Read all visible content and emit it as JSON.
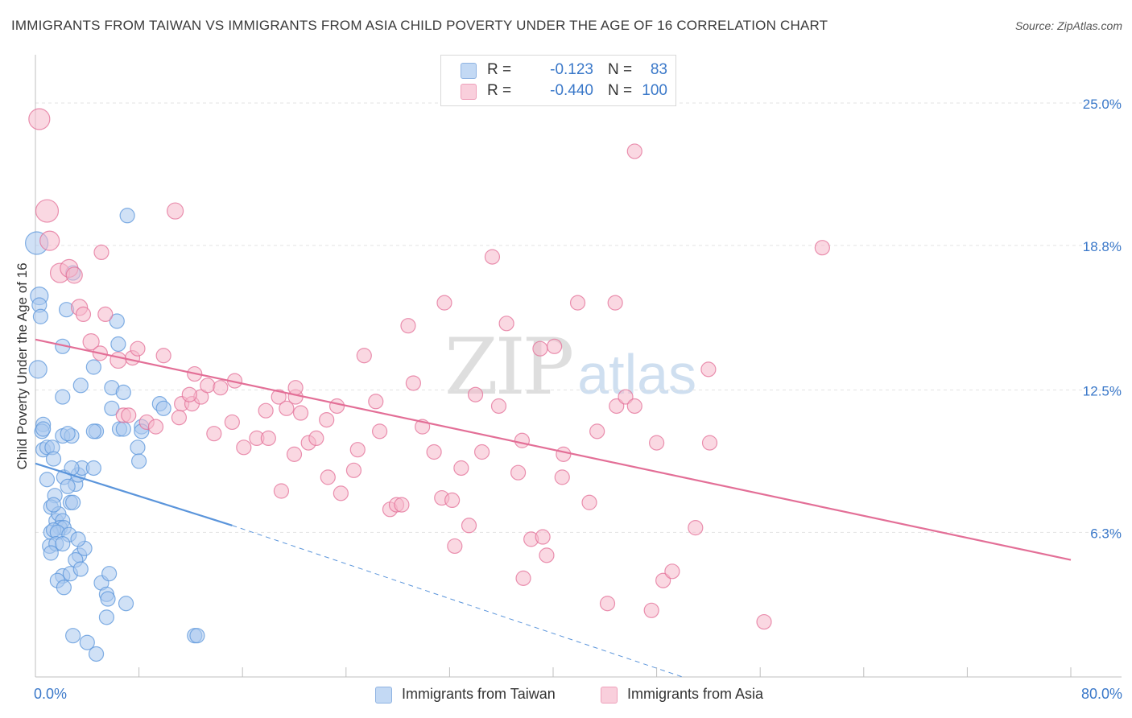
{
  "title": "IMMIGRANTS FROM TAIWAN VS IMMIGRANTS FROM ASIA CHILD POVERTY UNDER THE AGE OF 16 CORRELATION CHART",
  "source": "Source: ZipAtlas.com",
  "watermark": {
    "zip": "ZIP",
    "atlas": "atlas"
  },
  "legend": {
    "rows": [
      {
        "r_label": "R =",
        "r_value": "-0.123",
        "n_label": "N =",
        "n_value": "83",
        "color": "#a9c8ef"
      },
      {
        "r_label": "R =",
        "r_value": "-0.440",
        "n_label": "N =",
        "n_value": "100",
        "color": "#f5b8cb"
      }
    ]
  },
  "bottom_legend": [
    {
      "label": "Immigrants from Taiwan",
      "color": "#a9c8ef"
    },
    {
      "label": "Immigrants from Asia",
      "color": "#f5b8cb"
    }
  ],
  "chart_data": {
    "type": "scatter",
    "title": "IMMIGRANTS FROM TAIWAN VS IMMIGRANTS FROM ASIA CHILD POVERTY UNDER THE AGE OF 16 CORRELATION CHART",
    "xlabel": "",
    "ylabel": "Child Poverty Under the Age of 16",
    "x_tick_labels": [
      "0.0%",
      "80.0%"
    ],
    "y_tick_labels": [
      "25.0%",
      "18.8%",
      "12.5%",
      "6.3%"
    ],
    "y_ticks": [
      25.0,
      18.8,
      12.5,
      6.3
    ],
    "xlim": [
      0,
      80
    ],
    "ylim": [
      0,
      27.0
    ],
    "series": [
      {
        "name": "Immigrants from Taiwan",
        "color": "#5b95db",
        "fill": "#a9c8ef",
        "trend": {
          "x0": 0,
          "y0": 9.3,
          "x1": 15.2,
          "y1": 6.6,
          "dashed_to_x": 50,
          "dashed_to_y": 0.0
        },
        "points": [
          [
            0.1,
            18.9,
            14
          ],
          [
            0.2,
            13.4,
            11
          ],
          [
            0.3,
            16.6,
            11
          ],
          [
            0.3,
            16.2,
            9
          ],
          [
            0.4,
            15.7,
            9
          ],
          [
            0.6,
            11.0,
            9
          ],
          [
            0.5,
            10.7,
            9
          ],
          [
            0.6,
            10.8,
            9
          ],
          [
            0.6,
            9.9,
            9
          ],
          [
            0.9,
            10.0,
            9
          ],
          [
            0.9,
            8.6,
            9
          ],
          [
            1.3,
            10.0,
            9
          ],
          [
            1.4,
            9.5,
            9
          ],
          [
            1.5,
            7.9,
            9
          ],
          [
            1.2,
            7.4,
            9
          ],
          [
            1.6,
            6.8,
            9
          ],
          [
            1.8,
            7.1,
            9
          ],
          [
            2.1,
            6.8,
            9
          ],
          [
            1.9,
            6.5,
            9
          ],
          [
            2.2,
            6.5,
            9
          ],
          [
            1.2,
            6.3,
            9
          ],
          [
            1.4,
            6.4,
            9
          ],
          [
            1.7,
            6.3,
            9
          ],
          [
            2.6,
            6.2,
            9
          ],
          [
            1.1,
            5.7,
            9
          ],
          [
            1.6,
            5.8,
            9
          ],
          [
            2.1,
            5.8,
            9
          ],
          [
            1.2,
            5.4,
            9
          ],
          [
            2.1,
            4.4,
            9
          ],
          [
            2.7,
            4.5,
            9
          ],
          [
            3.4,
            5.3,
            9
          ],
          [
            3.8,
            5.6,
            9
          ],
          [
            3.1,
            5.1,
            9
          ],
          [
            1.7,
            4.2,
            9
          ],
          [
            2.2,
            3.9,
            9
          ],
          [
            5.1,
            4.1,
            9
          ],
          [
            5.7,
            4.5,
            9
          ],
          [
            5.5,
            3.6,
            9
          ],
          [
            5.6,
            3.4,
            9
          ],
          [
            5.5,
            2.6,
            9
          ],
          [
            2.9,
            1.8,
            9
          ],
          [
            4.0,
            1.5,
            9
          ],
          [
            4.7,
            1.0,
            9
          ],
          [
            12.3,
            1.8,
            9
          ],
          [
            12.5,
            1.8,
            9
          ],
          [
            2.2,
            8.7,
            9
          ],
          [
            2.7,
            7.6,
            9
          ],
          [
            2.9,
            7.6,
            9
          ],
          [
            3.1,
            8.4,
            9
          ],
          [
            3.3,
            8.8,
            9
          ],
          [
            3.6,
            9.1,
            9
          ],
          [
            4.5,
            9.1,
            9
          ],
          [
            2.8,
            9.1,
            9
          ],
          [
            2.1,
            10.5,
            9
          ],
          [
            2.8,
            10.5,
            9
          ],
          [
            4.7,
            10.7,
            9
          ],
          [
            2.5,
            10.6,
            9
          ],
          [
            4.5,
            10.7,
            9
          ],
          [
            6.5,
            10.8,
            9
          ],
          [
            6.8,
            10.8,
            9
          ],
          [
            8.2,
            10.9,
            9
          ],
          [
            8.2,
            10.7,
            9
          ],
          [
            7.9,
            10.0,
            9
          ],
          [
            8.0,
            9.4,
            9
          ],
          [
            9.6,
            11.9,
            9
          ],
          [
            9.9,
            11.7,
            9
          ],
          [
            2.1,
            12.2,
            9
          ],
          [
            3.5,
            12.7,
            9
          ],
          [
            5.9,
            12.6,
            9
          ],
          [
            6.8,
            12.4,
            9
          ],
          [
            4.5,
            13.5,
            9
          ],
          [
            2.1,
            14.4,
            9
          ],
          [
            6.4,
            14.5,
            9
          ],
          [
            6.3,
            15.5,
            9
          ],
          [
            2.4,
            16.0,
            9
          ],
          [
            2.9,
            17.6,
            9
          ],
          [
            7.1,
            20.1,
            9
          ],
          [
            5.9,
            11.7,
            9
          ],
          [
            1.4,
            7.5,
            9
          ],
          [
            2.5,
            8.3,
            9
          ],
          [
            7.0,
            3.2,
            9
          ],
          [
            3.5,
            4.7,
            9
          ],
          [
            3.3,
            6.0,
            9
          ]
        ]
      },
      {
        "name": "Immigrants from Asia",
        "color": "#e36f97",
        "fill": "#f5b8cb",
        "trend": {
          "x0": 0,
          "y0": 14.7,
          "x1": 80,
          "y1": 5.1
        },
        "points": [
          [
            0.3,
            24.3,
            13
          ],
          [
            0.9,
            20.3,
            14
          ],
          [
            1.1,
            19.0,
            12
          ],
          [
            1.9,
            17.6,
            12
          ],
          [
            2.6,
            17.8,
            11
          ],
          [
            3.0,
            17.5,
            10
          ],
          [
            5.1,
            18.5,
            9
          ],
          [
            3.4,
            16.1,
            10
          ],
          [
            3.7,
            15.8,
            9
          ],
          [
            5.4,
            15.8,
            9
          ],
          [
            4.3,
            14.6,
            10
          ],
          [
            5.0,
            14.1,
            9
          ],
          [
            6.4,
            13.8,
            10
          ],
          [
            7.5,
            13.9,
            9
          ],
          [
            7.9,
            14.3,
            9
          ],
          [
            9.9,
            14.0,
            9
          ],
          [
            10.8,
            20.3,
            10
          ],
          [
            12.3,
            13.2,
            9
          ],
          [
            11.3,
            11.9,
            9
          ],
          [
            12.1,
            11.9,
            9
          ],
          [
            12.8,
            12.2,
            9
          ],
          [
            13.3,
            12.7,
            9
          ],
          [
            14.3,
            12.6,
            9
          ],
          [
            15.4,
            12.9,
            9
          ],
          [
            6.8,
            11.4,
            9
          ],
          [
            8.6,
            11.1,
            9
          ],
          [
            9.3,
            10.9,
            9
          ],
          [
            11.1,
            11.3,
            9
          ],
          [
            13.8,
            10.6,
            9
          ],
          [
            15.2,
            11.1,
            9
          ],
          [
            16.1,
            10.0,
            9
          ],
          [
            17.1,
            10.4,
            9
          ],
          [
            17.8,
            11.6,
            9
          ],
          [
            18.0,
            10.4,
            9
          ],
          [
            18.8,
            12.2,
            9
          ],
          [
            19.4,
            11.7,
            9
          ],
          [
            20.1,
            12.2,
            9
          ],
          [
            20.5,
            11.5,
            9
          ],
          [
            21.1,
            10.2,
            9
          ],
          [
            21.7,
            10.4,
            9
          ],
          [
            22.5,
            11.2,
            9
          ],
          [
            23.3,
            11.8,
            9
          ],
          [
            20.0,
            9.7,
            9
          ],
          [
            19.0,
            8.1,
            9
          ],
          [
            22.6,
            8.7,
            9
          ],
          [
            23.6,
            8.0,
            9
          ],
          [
            24.6,
            9.0,
            9
          ],
          [
            24.9,
            9.9,
            9
          ],
          [
            25.4,
            14.0,
            9
          ],
          [
            26.3,
            12.0,
            9
          ],
          [
            26.6,
            10.7,
            9
          ],
          [
            27.4,
            7.3,
            9
          ],
          [
            27.9,
            7.5,
            9
          ],
          [
            28.3,
            7.5,
            9
          ],
          [
            29.2,
            12.8,
            9
          ],
          [
            28.8,
            15.3,
            9
          ],
          [
            29.9,
            10.9,
            9
          ],
          [
            30.8,
            9.8,
            9
          ],
          [
            31.4,
            7.8,
            9
          ],
          [
            32.2,
            7.7,
            9
          ],
          [
            31.6,
            16.3,
            9
          ],
          [
            32.9,
            9.1,
            9
          ],
          [
            33.5,
            6.6,
            9
          ],
          [
            34.0,
            12.3,
            9
          ],
          [
            34.5,
            9.8,
            9
          ],
          [
            35.3,
            18.3,
            9
          ],
          [
            35.8,
            11.8,
            9
          ],
          [
            36.4,
            15.4,
            9
          ],
          [
            37.3,
            8.9,
            9
          ],
          [
            37.6,
            10.3,
            9
          ],
          [
            32.4,
            5.7,
            9
          ],
          [
            38.3,
            6.0,
            9
          ],
          [
            39.2,
            6.1,
            9
          ],
          [
            39.5,
            5.3,
            9
          ],
          [
            37.7,
            4.3,
            9
          ],
          [
            39.0,
            14.3,
            9
          ],
          [
            40.1,
            14.4,
            9
          ],
          [
            40.7,
            8.7,
            9
          ],
          [
            40.8,
            9.7,
            9
          ],
          [
            41.9,
            16.3,
            9
          ],
          [
            42.8,
            7.6,
            9
          ],
          [
            43.4,
            10.7,
            9
          ],
          [
            44.8,
            16.3,
            9
          ],
          [
            44.9,
            11.8,
            9
          ],
          [
            45.6,
            12.2,
            9
          ],
          [
            46.3,
            11.8,
            9
          ],
          [
            44.2,
            3.2,
            9
          ],
          [
            47.6,
            2.9,
            9
          ],
          [
            48.0,
            10.2,
            9
          ],
          [
            48.5,
            4.2,
            9
          ],
          [
            49.2,
            4.6,
            9
          ],
          [
            51.0,
            6.5,
            9
          ],
          [
            52.0,
            13.4,
            9
          ],
          [
            52.1,
            10.2,
            9
          ],
          [
            56.3,
            2.4,
            9
          ],
          [
            60.8,
            18.7,
            9
          ],
          [
            46.3,
            22.9,
            9
          ],
          [
            7.2,
            11.4,
            9
          ],
          [
            11.9,
            12.3,
            9
          ],
          [
            20.1,
            12.6,
            9
          ]
        ]
      }
    ]
  }
}
